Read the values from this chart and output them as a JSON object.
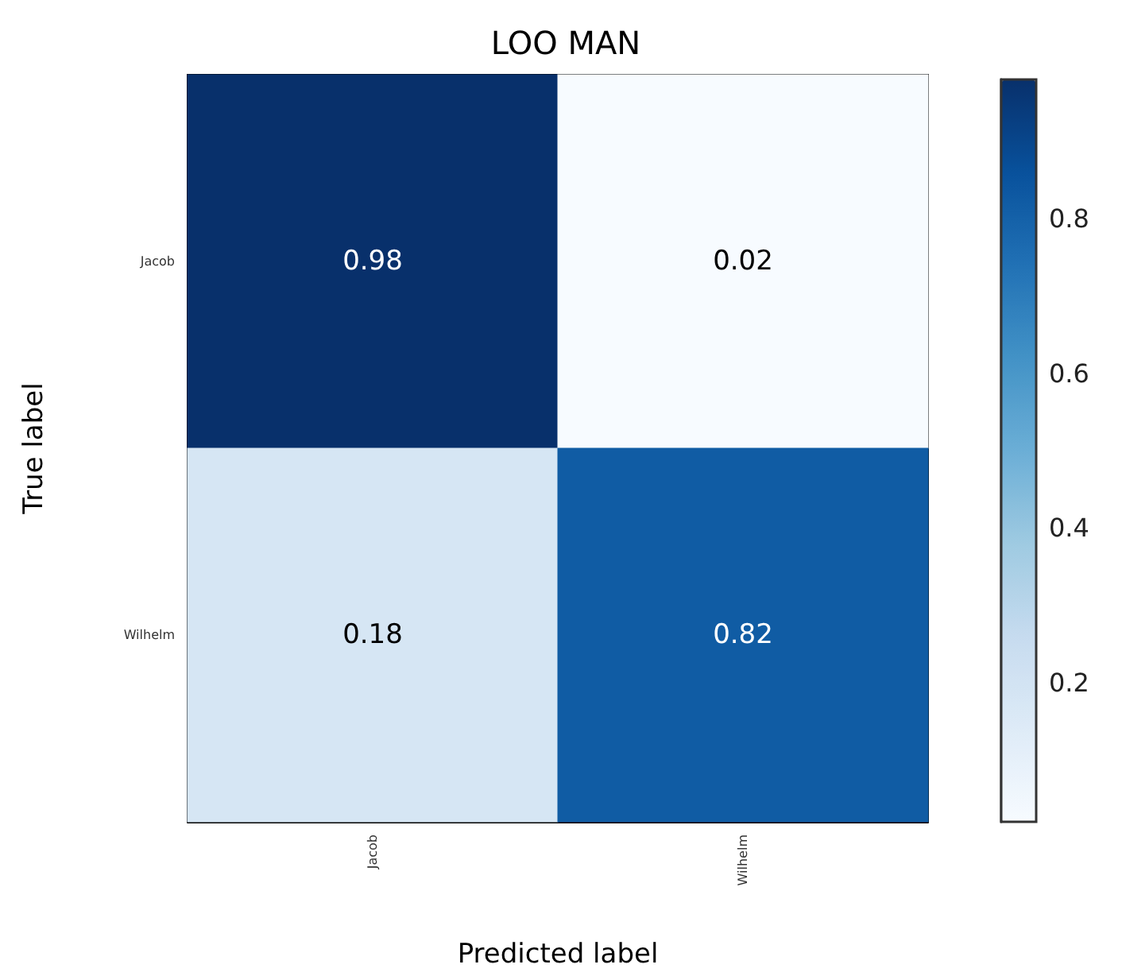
{
  "chart_data": {
    "type": "heatmap",
    "title": "LOO MAN",
    "xlabel": "Predicted label",
    "ylabel": "True label",
    "categories": [
      "Jacob",
      "Wilhelm"
    ],
    "y_categories": [
      "Jacob",
      "Wilhelm"
    ],
    "cells": [
      [
        0.98,
        0.02
      ],
      [
        0.18,
        0.82
      ]
    ],
    "clim": [
      0.02,
      0.98
    ],
    "cticks": [
      0.2,
      0.4,
      0.6,
      0.8
    ],
    "data_labels": true
  }
}
